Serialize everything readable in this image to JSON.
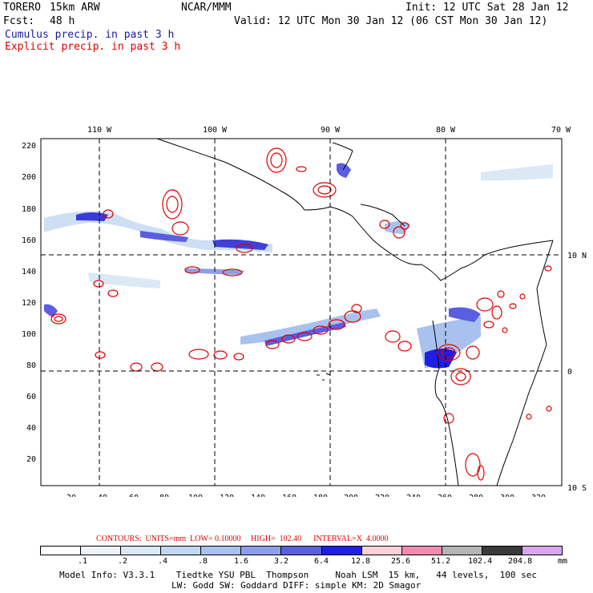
{
  "header": {
    "model": "TORERO",
    "resolution": "15km ARW",
    "org": "NCAR/MMM",
    "init": "Init: 12 UTC Sat 28 Jan 12",
    "fcst_label": "Fcst:",
    "fcst_value": "48 h",
    "valid": "Valid: 12 UTC Mon 30 Jan 12 (06 CST Mon 30 Jan 12)",
    "legend_cumulus": "Cumulus precip. in past 3 h",
    "legend_explicit": "Explicit precip. in past 3 h"
  },
  "map": {
    "lon_labels": [
      "110 W",
      "100 W",
      "90 W",
      "80 W",
      "70 W"
    ],
    "lat_labels": [
      "10 N",
      "0",
      "10 S"
    ],
    "y_ticks": [
      "220",
      "200",
      "180",
      "160",
      "140",
      "120",
      "100",
      "80",
      "60",
      "40",
      "20"
    ],
    "x_ticks": [
      "20",
      "40",
      "60",
      "80",
      "100",
      "120",
      "140",
      "160",
      "180",
      "200",
      "220",
      "240",
      "260",
      "280",
      "300",
      "320"
    ]
  },
  "contours_line": "CONTOURS:  UNITS=mm  LOW= 0.10000     HIGH=  102.40      INTERVAL=X  4.0000",
  "scale": {
    "colors": [
      "#ffffff",
      "#eef3fb",
      "#dbe8f6",
      "#c2d7f1",
      "#a9c1ee",
      "#8d9ee8",
      "#5a5ee0",
      "#1e1ee6",
      "#ffd0d6",
      "#f08ab0",
      "#b4b4b4",
      "#3a3a3a",
      "#d7a6ee"
    ],
    "labels": [
      ".1",
      ".2",
      ".4",
      ".8",
      "1.6",
      "3.2",
      "6.4",
      "12.8",
      "25.6",
      "51.2",
      "102.4",
      "204.8"
    ],
    "unit": "mm"
  },
  "model_info": {
    "line1": "Model Info: V3.3.1    Tiedtke YSU PBL  Thompson     Noah LSM  15 km,   44 levels,  100 sec",
    "line2": "LW: Godd SW: Goddard DIFF: simple KM: 2D Smagor"
  },
  "colors": {
    "cumulus": "#1a1aa6",
    "explicit": "#e00000"
  }
}
